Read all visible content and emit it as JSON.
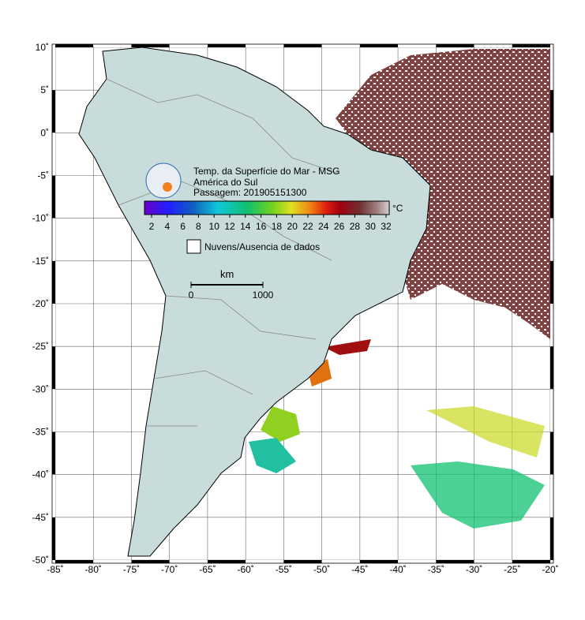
{
  "map": {
    "title": "Temp. da Superfície do Mar - MSG",
    "region": "América do Sul",
    "pass": "Passagem: 201905151300",
    "colorbar": {
      "unit": "°C",
      "ticks": [
        2,
        4,
        6,
        8,
        10,
        12,
        14,
        16,
        18,
        20,
        22,
        24,
        26,
        28,
        30,
        32
      ]
    },
    "legend": "Nuvens/Ausencia de dados",
    "scale": {
      "unit": "km",
      "start": "0",
      "end": "1000"
    },
    "lon_ticks": [
      {
        "value": -85,
        "label": "-85˚"
      },
      {
        "value": -80,
        "label": "-80˚"
      },
      {
        "value": -75,
        "label": "-75˚"
      },
      {
        "value": -70,
        "label": "-70˚"
      },
      {
        "value": -65,
        "label": "-65˚"
      },
      {
        "value": -60,
        "label": "-60˚"
      },
      {
        "value": -55,
        "label": "-55˚"
      },
      {
        "value": -50,
        "label": "-50˚"
      },
      {
        "value": -45,
        "label": "-45˚"
      },
      {
        "value": -40,
        "label": "-40˚"
      },
      {
        "value": -35,
        "label": "-35˚"
      },
      {
        "value": -30,
        "label": "-30˚"
      },
      {
        "value": -25,
        "label": "-25˚"
      },
      {
        "value": -20,
        "label": "-20˚"
      }
    ],
    "lat_ticks": [
      {
        "value": 10,
        "label": "10˚"
      },
      {
        "value": 5,
        "label": "5˚"
      },
      {
        "value": 0,
        "label": "0˚"
      },
      {
        "value": -5,
        "label": "-5˚"
      },
      {
        "value": -10,
        "label": "-10˚"
      },
      {
        "value": -15,
        "label": "-15˚"
      },
      {
        "value": -20,
        "label": "-20˚"
      },
      {
        "value": -25,
        "label": "-25˚"
      },
      {
        "value": -30,
        "label": "-30˚"
      },
      {
        "value": -35,
        "label": "-35˚"
      },
      {
        "value": -40,
        "label": "-40˚"
      },
      {
        "value": -45,
        "label": "-45˚"
      },
      {
        "value": -50,
        "label": "-50˚"
      }
    ]
  }
}
